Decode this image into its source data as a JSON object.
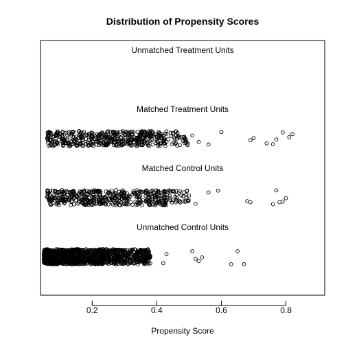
{
  "chart_data": {
    "type": "scatter",
    "title": "Distribution of Propensity Scores",
    "xlabel": "Propensity Score",
    "ylabel": "",
    "xlim": [
      0.04,
      0.92
    ],
    "xticks": [
      "0.2",
      "0.4",
      "0.6",
      "0.8"
    ],
    "xtick_values": [
      0.2,
      0.4,
      0.6,
      0.8
    ],
    "grid": false,
    "legend": "none",
    "groups": [
      {
        "label": "Unmatched Treatment Units",
        "sample_scores": []
      },
      {
        "label": "Matched Treatment Units",
        "dense_ranges": [
          [
            0.06,
            0.5
          ]
        ],
        "sample_scores": [
          0.07,
          0.09,
          0.11,
          0.13,
          0.15,
          0.17,
          0.19,
          0.22,
          0.25,
          0.28,
          0.31,
          0.34,
          0.37,
          0.4,
          0.43,
          0.45,
          0.47,
          0.49,
          0.51,
          0.53,
          0.56,
          0.6,
          0.69,
          0.7,
          0.74,
          0.76,
          0.77,
          0.79,
          0.81,
          0.82
        ]
      },
      {
        "label": "Matched Control Units",
        "dense_ranges": [
          [
            0.06,
            0.5
          ]
        ],
        "sample_scores": [
          0.07,
          0.09,
          0.11,
          0.13,
          0.15,
          0.17,
          0.19,
          0.22,
          0.25,
          0.28,
          0.31,
          0.34,
          0.37,
          0.4,
          0.43,
          0.45,
          0.47,
          0.5,
          0.52,
          0.56,
          0.59,
          0.68,
          0.69,
          0.76,
          0.77,
          0.78,
          0.79,
          0.8
        ]
      },
      {
        "label": "Unmatched Control Units",
        "dense_ranges": [
          [
            0.05,
            0.24
          ],
          [
            0.24,
            0.38
          ]
        ],
        "sample_scores": [
          0.05,
          0.07,
          0.09,
          0.11,
          0.13,
          0.15,
          0.17,
          0.19,
          0.21,
          0.23,
          0.26,
          0.29,
          0.32,
          0.35,
          0.38,
          0.42,
          0.43,
          0.51,
          0.52,
          0.53,
          0.54,
          0.63,
          0.65,
          0.67
        ]
      }
    ]
  }
}
